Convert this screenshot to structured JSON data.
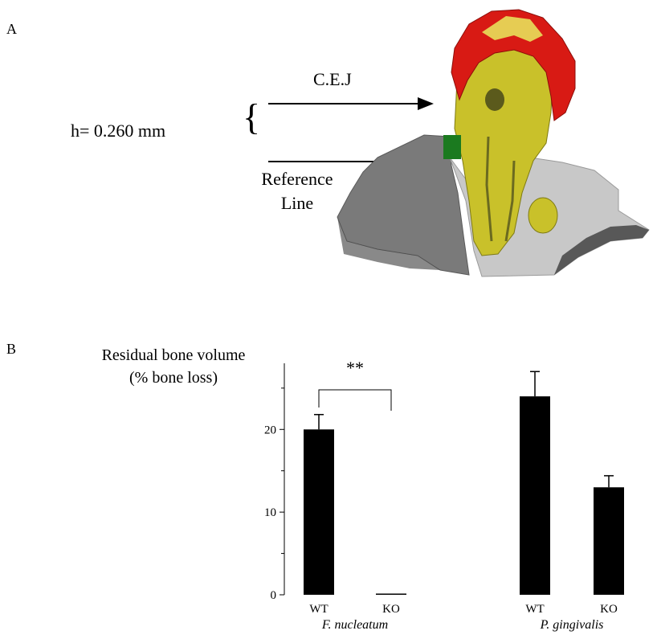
{
  "panel_a": {
    "letter": "A",
    "measurement": "h= 0.260 mm",
    "bracket": "{",
    "cej_label": "C.E.J",
    "reference_label_line1": "Reference",
    "reference_label_line2": "Line",
    "colors": {
      "enamel": "#d81a14",
      "dentin": "#c9c12a",
      "bone": "#7a7a7a",
      "soft": "#c8c8c8",
      "reference_region": "#1b7a1f"
    }
  },
  "panel_b": {
    "letter": "B",
    "ylabel_line1": "Residual bone volume",
    "ylabel_line2": "(% bone loss)",
    "significance": "**"
  },
  "chart_data": {
    "type": "bar",
    "ylabel": "Residual bone volume (% bone loss)",
    "ylim": [
      0,
      28
    ],
    "yticks": [
      0,
      10,
      20
    ],
    "groups": [
      {
        "name": "F. nucleatum",
        "bars": [
          {
            "category": "WT",
            "value": 20,
            "error": 1.8
          },
          {
            "category": "KO",
            "value": 0.1,
            "error": 0
          }
        ]
      },
      {
        "name": "P. gingivalis",
        "bars": [
          {
            "category": "WT",
            "value": 24,
            "error": 3.0
          },
          {
            "category": "KO",
            "value": 13,
            "error": 1.4
          }
        ]
      }
    ],
    "bar_color": "#000000",
    "annotation": {
      "text": "**",
      "between": [
        "F. nucleatum WT",
        "F. nucleatum KO"
      ]
    },
    "grid": false
  }
}
